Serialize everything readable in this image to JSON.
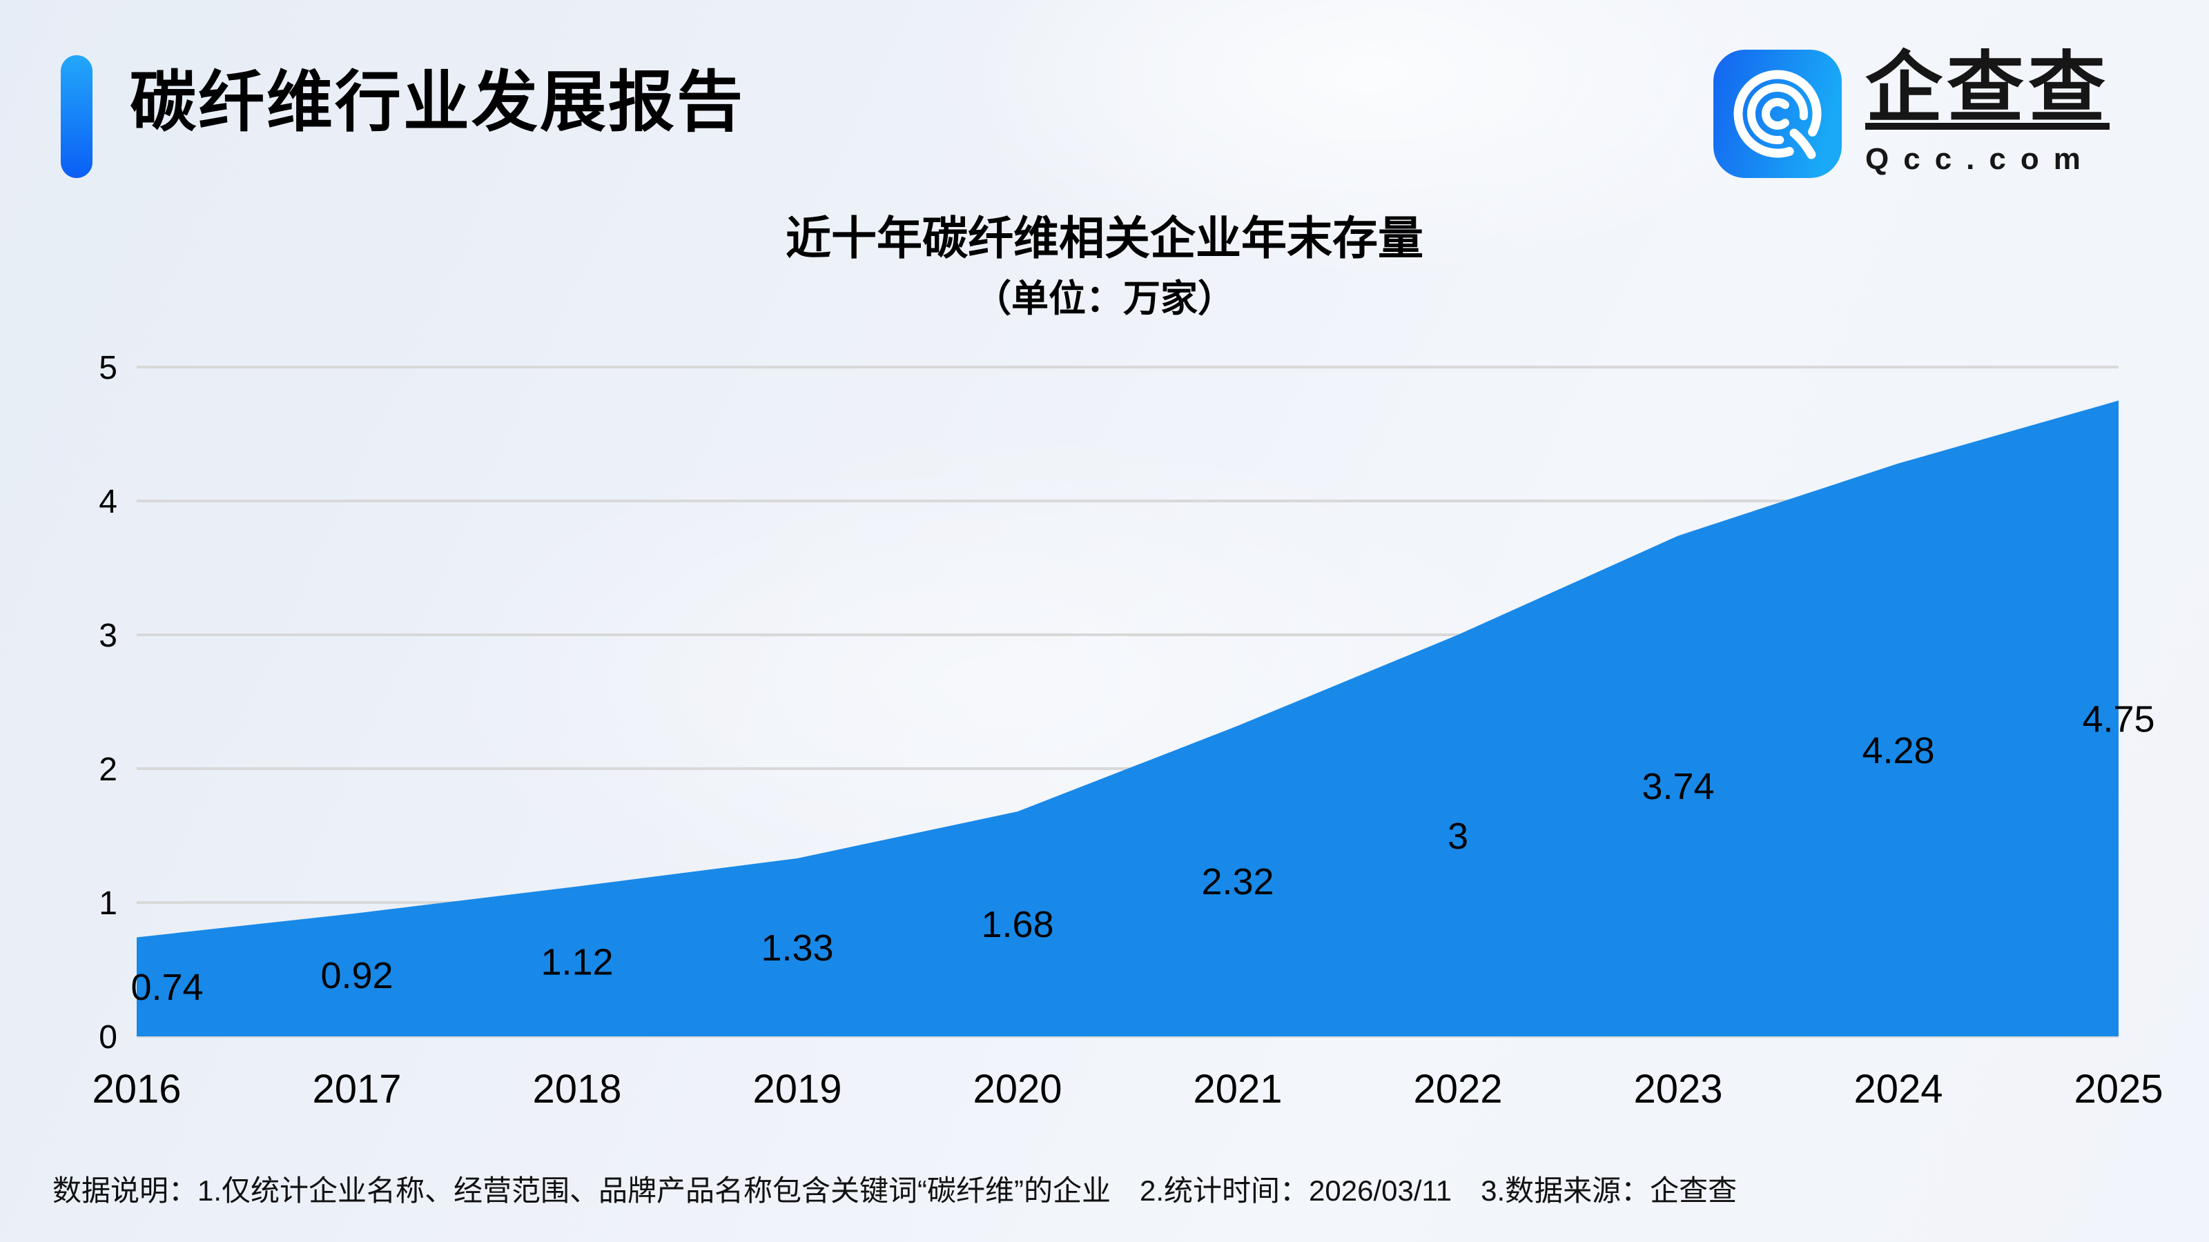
{
  "page": {
    "title": "碳纤维行业发展报告"
  },
  "logo": {
    "wordmark": "企查查",
    "domain": "Qcc.com"
  },
  "chart_data": {
    "type": "area",
    "title": "近十年碳纤维相关企业年末存量",
    "subtitle": "（单位：万家）",
    "unit": "万家",
    "categories": [
      "2016",
      "2017",
      "2018",
      "2019",
      "2020",
      "2021",
      "2022",
      "2023",
      "2024",
      "2025"
    ],
    "values": [
      0.74,
      0.92,
      1.12,
      1.33,
      1.68,
      2.32,
      3,
      3.74,
      4.28,
      4.75
    ],
    "ylim": [
      0,
      5
    ],
    "yticks": [
      0,
      1,
      2,
      3,
      4,
      5
    ],
    "grid": true,
    "legend": "none",
    "area_color": "#1889E8",
    "label_color": "#000000",
    "gridline_color": "#D8D8D8"
  },
  "footer": {
    "note": "数据说明：1.仅统计企业名称、经营范围、品牌产品名称包含关键词“碳纤维”的企业　2.统计时间：2026/03/11　3.数据来源：企查查"
  },
  "colors": {
    "accent_bar_top": "#23A7FA",
    "accent_bar_bottom": "#0A5FF5",
    "logo_gradient_left": "#1464EF",
    "logo_gradient_right": "#19A9F7"
  }
}
